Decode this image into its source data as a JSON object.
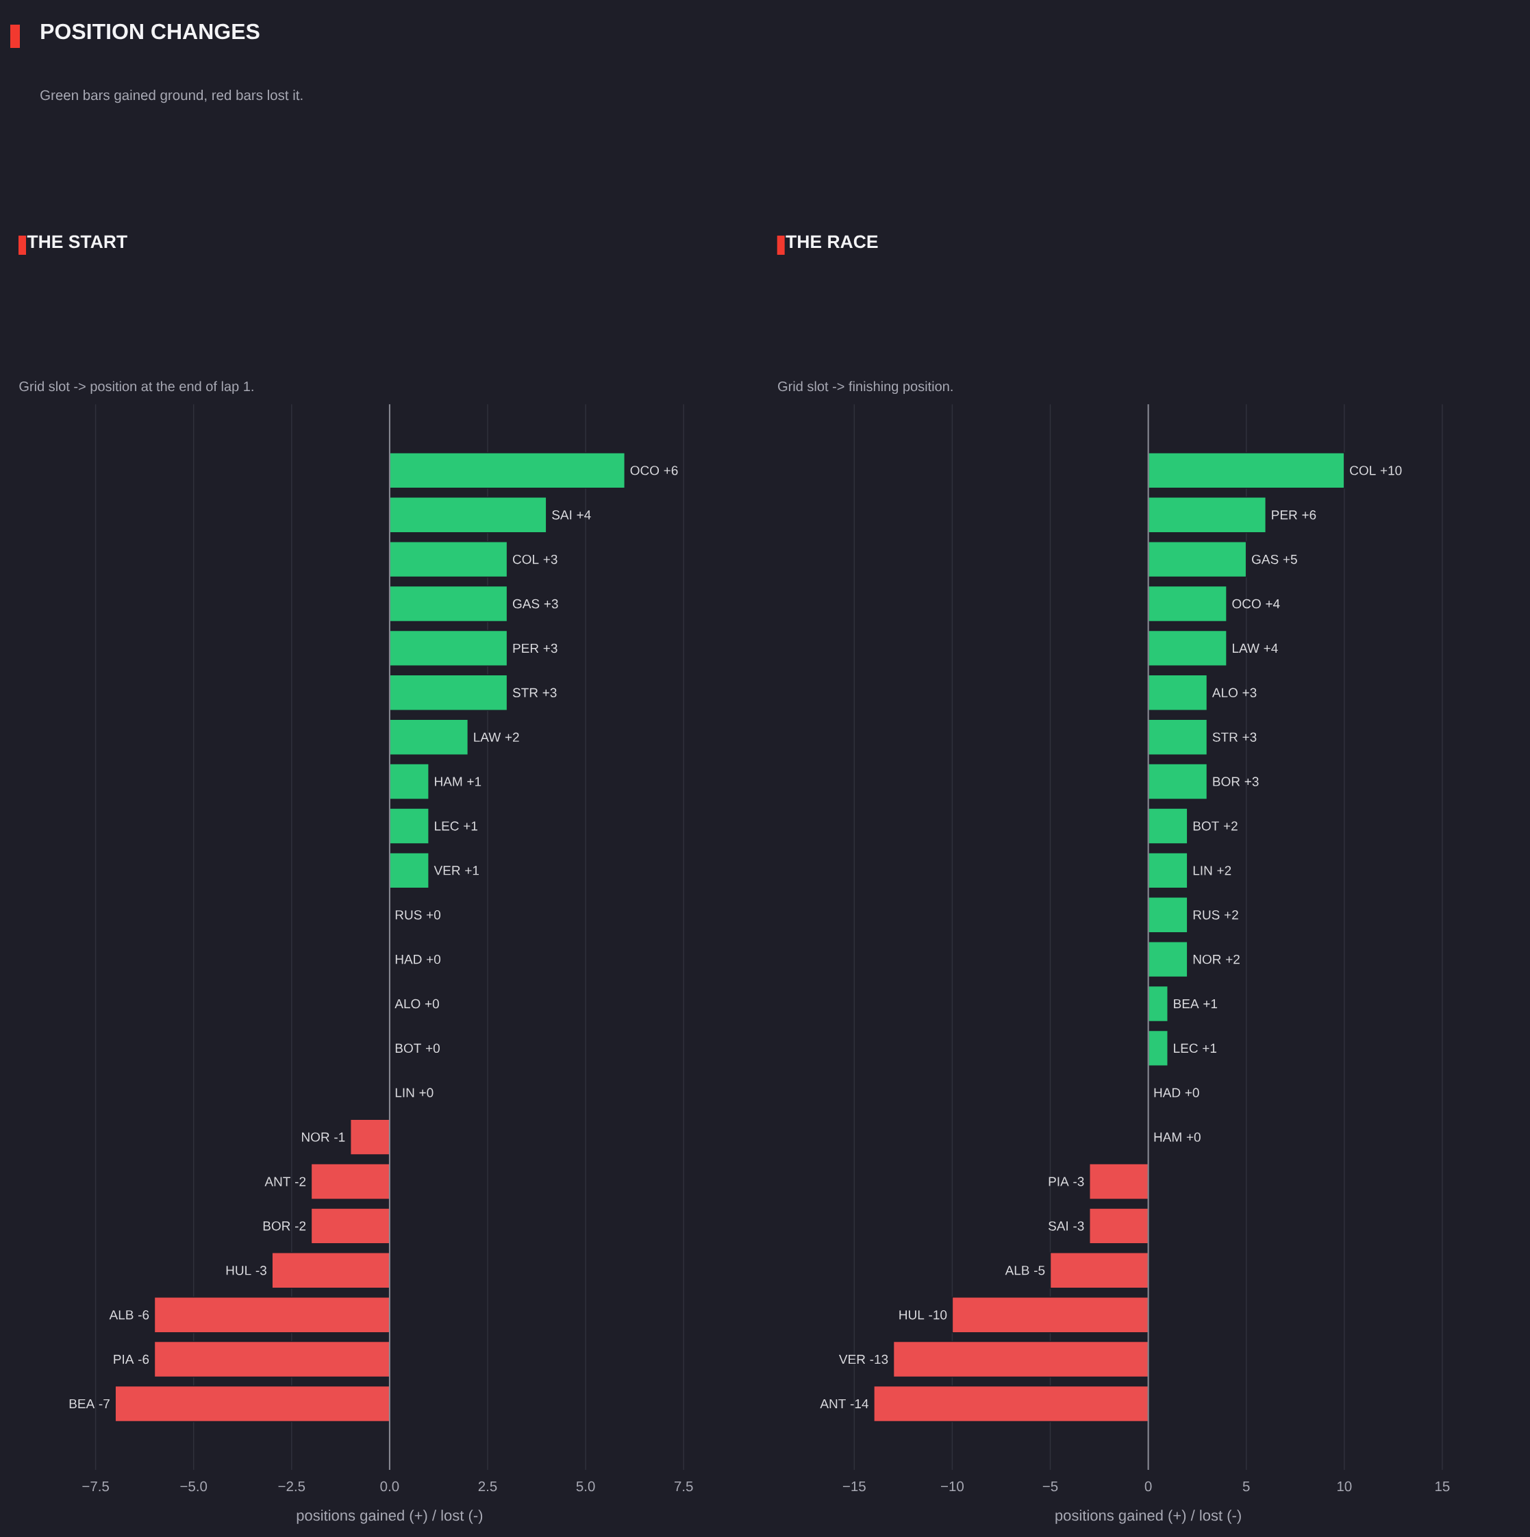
{
  "chart_data": [
    {
      "type": "other",
      "title": "POSITION CHANGES",
      "subtitle": "Green bars gained ground, red bars lost it."
    },
    {
      "type": "bar",
      "orientation": "horizontal",
      "title": "THE START",
      "subtitle": "Grid slot -> position at the end of lap 1.",
      "xlabel": "positions gained (+) / lost (-)",
      "categories": [
        "OCO",
        "SAI",
        "COL",
        "GAS",
        "PER",
        "STR",
        "LAW",
        "HAM",
        "LEC",
        "VER",
        "RUS",
        "HAD",
        "ALO",
        "BOT",
        "LIN",
        "NOR",
        "ANT",
        "BOR",
        "HUL",
        "ALB",
        "PIA",
        "BEA"
      ],
      "values": [
        6,
        4,
        3,
        3,
        3,
        3,
        2,
        1,
        1,
        1,
        0,
        0,
        0,
        0,
        0,
        -1,
        -2,
        -2,
        -3,
        -6,
        -6,
        -7
      ],
      "value_labels": [
        "+6",
        "+4",
        "+3",
        "+3",
        "+3",
        "+3",
        "+2",
        "+1",
        "+1",
        "+1",
        "+0",
        "+0",
        "+0",
        "+0",
        "+0",
        "-1",
        "-2",
        "-2",
        "-3",
        "-6",
        "-6",
        "-7"
      ],
      "colors": [
        "#2ac976",
        "#2ac976",
        "#2ac976",
        "#2ac976",
        "#2ac976",
        "#2ac976",
        "#2ac976",
        "#2ac976",
        "#2ac976",
        "#2ac976",
        "#2ac976",
        "#2ac976",
        "#2ac976",
        "#2ac976",
        "#2ac976",
        "#eb4e4f",
        "#eb4e4f",
        "#eb4e4f",
        "#eb4e4f",
        "#eb4e4f",
        "#eb4e4f",
        "#eb4e4f"
      ],
      "xlim": [
        -7.5,
        7.5
      ],
      "xticks": [
        {
          "value": -7.5,
          "label": "−7.5"
        },
        {
          "value": -5,
          "label": "−5.0"
        },
        {
          "value": -2.5,
          "label": "−2.5"
        },
        {
          "value": 0,
          "label": "0.0"
        },
        2.5,
        {
          "value": 5,
          "label": "5.0"
        },
        7.5
      ],
      "grid": "x",
      "tick_labels": "x",
      "ref_lines": [
        {
          "axis": "x",
          "value": 0,
          "color": "#8b8c96"
        }
      ]
    },
    {
      "type": "bar",
      "orientation": "horizontal",
      "title": "THE RACE",
      "subtitle": "Grid slot -> finishing position.",
      "xlabel": "positions gained (+) / lost (-)",
      "categories": [
        "COL",
        "PER",
        "GAS",
        "OCO",
        "LAW",
        "ALO",
        "STR",
        "BOR",
        "BOT",
        "LIN",
        "RUS",
        "NOR",
        "BEA",
        "LEC",
        "HAD",
        "HAM",
        "PIA",
        "SAI",
        "ALB",
        "HUL",
        "VER",
        "ANT"
      ],
      "values": [
        10,
        6,
        5,
        4,
        4,
        3,
        3,
        3,
        2,
        2,
        2,
        2,
        1,
        1,
        0,
        0,
        -3,
        -3,
        -5,
        -10,
        -13,
        -14
      ],
      "value_labels": [
        "+10",
        "+6",
        "+5",
        "+4",
        "+4",
        "+3",
        "+3",
        "+3",
        "+2",
        "+2",
        "+2",
        "+2",
        "+1",
        "+1",
        "+0",
        "+0",
        "-3",
        "-3",
        "-5",
        "-10",
        "-13",
        "-14"
      ],
      "colors": [
        "#2ac976",
        "#2ac976",
        "#2ac976",
        "#2ac976",
        "#2ac976",
        "#2ac976",
        "#2ac976",
        "#2ac976",
        "#2ac976",
        "#2ac976",
        "#2ac976",
        "#2ac976",
        "#2ac976",
        "#2ac976",
        "#2ac976",
        "#2ac976",
        "#eb4e4f",
        "#eb4e4f",
        "#eb4e4f",
        "#eb4e4f",
        "#eb4e4f",
        "#eb4e4f"
      ],
      "xlim": [
        -15,
        15
      ],
      "xticks": [
        {
          "value": -15,
          "label": "−15"
        },
        {
          "value": -10,
          "label": "−10"
        },
        {
          "value": -5,
          "label": "−5"
        },
        0,
        5,
        10,
        15
      ],
      "grid": "x",
      "tick_labels": "x",
      "ref_lines": [
        {
          "axis": "x",
          "value": 0,
          "color": "#8b8c96"
        }
      ]
    }
  ]
}
